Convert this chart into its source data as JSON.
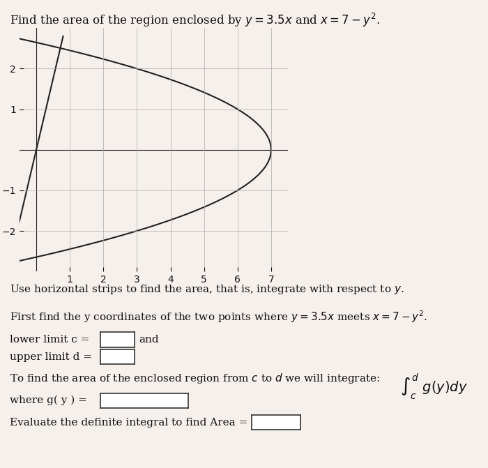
{
  "title": "Find the area of the region enclosed by $y = 3.5x$ and $x = 7 - y^2$.",
  "graph_xlim": [
    -0.5,
    7.5
  ],
  "graph_ylim": [
    -3.0,
    3.0
  ],
  "graph_xticks": [
    1,
    2,
    3,
    4,
    5,
    6,
    7
  ],
  "graph_yticks": [
    -2,
    -1,
    1,
    2
  ],
  "line_color": "#222222",
  "curve_color": "#222222",
  "bg_color": "#f5f0eb",
  "text_color": "#111111",
  "para_text1": "Use horizontal strips to find the area, that is, integrate with respect to $y$.",
  "para_text2": "First find the y coordinates of the two points where $y = 3.5x$ meets $x = 7 - y^2$.",
  "lower_limit_label": "lower limit c =",
  "upper_limit_label": "upper limit d =",
  "integral_text": "To find the area of the enclosed region from $c$ to $d$ we will integrate:",
  "gy_label": "where g( y ) =",
  "area_label": "Evaluate the definite integral to find Area ="
}
